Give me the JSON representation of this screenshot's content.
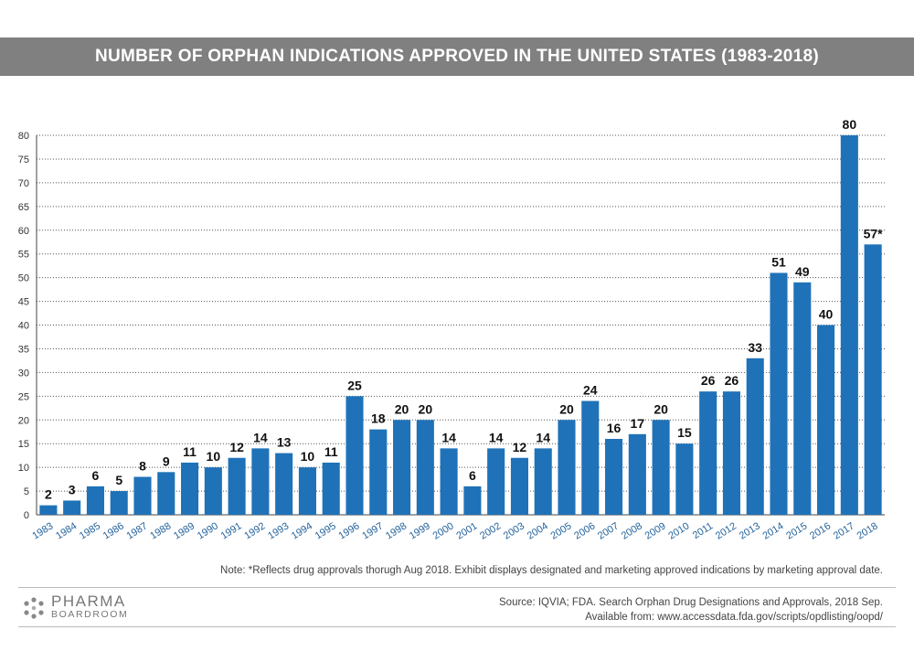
{
  "header": {
    "title": "NUMBER OF ORPHAN INDICATIONS APPROVED IN THE UNITED STATES (1983-2018)"
  },
  "chart_data": {
    "type": "bar",
    "title": "NUMBER OF ORPHAN INDICATIONS APPROVED IN THE UNITED STATES (1983-2018)",
    "categories": [
      "1983",
      "1984",
      "1985",
      "1986",
      "1987",
      "1988",
      "1989",
      "1990",
      "1991",
      "1992",
      "1993",
      "1994",
      "1995",
      "1996",
      "1997",
      "1998",
      "1999",
      "2000",
      "2001",
      "2002",
      "2003",
      "2004",
      "2005",
      "2006",
      "2007",
      "2008",
      "2009",
      "2010",
      "2011",
      "2012",
      "2013",
      "2014",
      "2015",
      "2016",
      "2017",
      "2018"
    ],
    "values": [
      2,
      3,
      6,
      5,
      8,
      9,
      11,
      10,
      12,
      14,
      13,
      10,
      11,
      25,
      18,
      20,
      20,
      14,
      6,
      14,
      12,
      14,
      20,
      24,
      16,
      17,
      20,
      15,
      26,
      26,
      33,
      51,
      49,
      40,
      80,
      57
    ],
    "data_labels": [
      "2",
      "3",
      "6",
      "5",
      "8",
      "9",
      "11",
      "10",
      "12",
      "14",
      "13",
      "10",
      "11",
      "25",
      "18",
      "20",
      "20",
      "14",
      "6",
      "14",
      "12",
      "14",
      "20",
      "24",
      "16",
      "17",
      "20",
      "15",
      "26",
      "26",
      "33",
      "51",
      "49",
      "40",
      "80",
      "57*"
    ],
    "yticks": [
      0,
      5,
      10,
      15,
      20,
      25,
      30,
      35,
      40,
      45,
      50,
      55,
      60,
      65,
      70,
      75,
      80
    ],
    "ylim": [
      0,
      80
    ],
    "grid": true,
    "bar_color": "#1f72b8",
    "xlabel": "",
    "ylabel": ""
  },
  "footer": {
    "note": "Note: *Reflects drug approvals thorugh Aug 2018. Exhibit displays designated and marketing approved indications by marketing approval date.",
    "source_line1": "Source:  IQVIA; FDA. Search Orphan Drug Designations and Approvals, 2018 Sep.",
    "source_line2": "Available from: www.accessdata.fda.gov/scripts/opdlisting/oopd/",
    "logo_main": "PHARMA",
    "logo_sub": "BOARDROOM",
    "logo_icon": "pharma-dots-icon"
  }
}
